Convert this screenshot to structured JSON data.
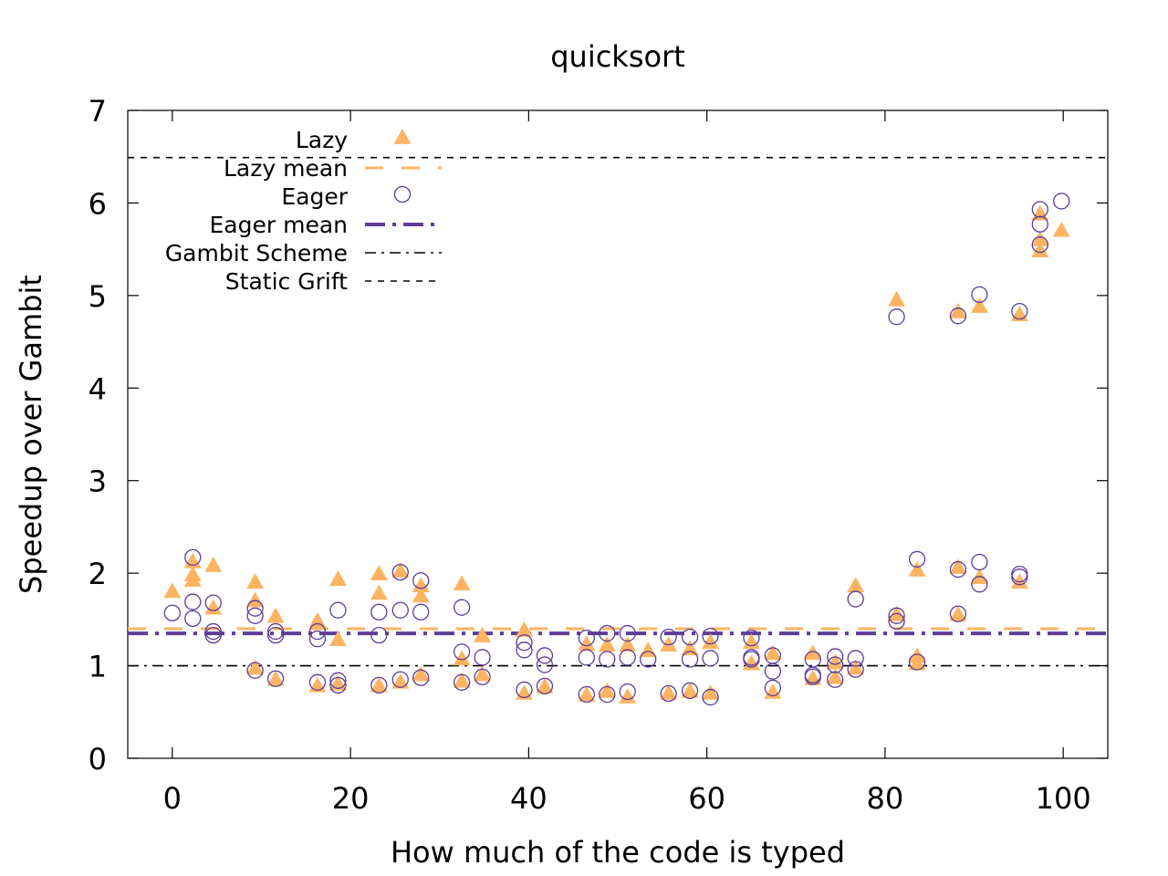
{
  "chart_data": {
    "type": "scatter",
    "title": "quicksort",
    "xlabel": "How much of the code is typed",
    "ylabel": "Speedup over Gambit",
    "xlim": [
      -5,
      105
    ],
    "ylim": [
      0,
      7
    ],
    "xticks": [
      0,
      20,
      40,
      60,
      80,
      100
    ],
    "yticks": [
      0,
      1,
      2,
      3,
      4,
      5,
      6,
      7
    ],
    "grid": false,
    "legend_position": "top-left",
    "series": [
      {
        "name": "Lazy",
        "kind": "points",
        "marker": "triangle",
        "color": "#fdb462",
        "points": [
          [
            0,
            1.8
          ],
          [
            2.3,
            2.12
          ],
          [
            2.3,
            1.98
          ],
          [
            2.3,
            1.92
          ],
          [
            4.6,
            2.08
          ],
          [
            4.6,
            1.62
          ],
          [
            9.3,
            1.9
          ],
          [
            9.3,
            1.7
          ],
          [
            9.3,
            0.97
          ],
          [
            11.6,
            1.53
          ],
          [
            11.6,
            0.85
          ],
          [
            16.3,
            1.48
          ],
          [
            16.3,
            0.78
          ],
          [
            18.6,
            1.93
          ],
          [
            18.6,
            1.28
          ],
          [
            18.6,
            0.8
          ],
          [
            23.2,
            1.99
          ],
          [
            23.2,
            1.78
          ],
          [
            23.2,
            0.78
          ],
          [
            25.6,
            2.02
          ],
          [
            25.6,
            0.82
          ],
          [
            27.9,
            1.86
          ],
          [
            27.9,
            1.75
          ],
          [
            27.9,
            0.9
          ],
          [
            32.5,
            1.88
          ],
          [
            32.5,
            1.07
          ],
          [
            32.5,
            0.83
          ],
          [
            34.8,
            1.32
          ],
          [
            34.8,
            0.9
          ],
          [
            39.5,
            1.38
          ],
          [
            39.5,
            0.7
          ],
          [
            41.8,
            0.77
          ],
          [
            46.5,
            1.23
          ],
          [
            46.5,
            0.68
          ],
          [
            48.8,
            1.22
          ],
          [
            48.8,
            0.72
          ],
          [
            51.1,
            1.22
          ],
          [
            51.1,
            0.66
          ],
          [
            53.4,
            1.16
          ],
          [
            55.7,
            1.22
          ],
          [
            55.7,
            0.7
          ],
          [
            58.1,
            1.18
          ],
          [
            58.1,
            0.72
          ],
          [
            60.4,
            1.25
          ],
          [
            60.4,
            0.7
          ],
          [
            65.0,
            1.25
          ],
          [
            65.0,
            1.02
          ],
          [
            67.4,
            1.13
          ],
          [
            67.4,
            0.71
          ],
          [
            71.9,
            1.13
          ],
          [
            71.9,
            0.86
          ],
          [
            74.4,
            1.03
          ],
          [
            74.4,
            0.87
          ],
          [
            76.7,
            1.86
          ],
          [
            76.7,
            0.97
          ],
          [
            81.3,
            4.95
          ],
          [
            81.3,
            1.55
          ],
          [
            83.6,
            2.03
          ],
          [
            83.6,
            1.1
          ],
          [
            83.6,
            1.02
          ],
          [
            88.2,
            4.82
          ],
          [
            88.2,
            2.06
          ],
          [
            88.2,
            1.55
          ],
          [
            90.6,
            4.88
          ],
          [
            90.6,
            1.95
          ],
          [
            95.1,
            4.79
          ],
          [
            95.1,
            1.9
          ],
          [
            97.4,
            5.88
          ],
          [
            97.4,
            5.6
          ],
          [
            97.4,
            5.48
          ],
          [
            99.8,
            5.7
          ]
        ]
      },
      {
        "name": "Lazy mean",
        "kind": "hline",
        "y": 1.4,
        "color": "#fdb462",
        "dash": "long-dash"
      },
      {
        "name": "Eager",
        "kind": "points",
        "marker": "circle",
        "color": "#5e3c99",
        "points": [
          [
            0,
            1.57
          ],
          [
            2.3,
            2.17
          ],
          [
            2.3,
            1.69
          ],
          [
            2.3,
            1.51
          ],
          [
            4.6,
            1.68
          ],
          [
            4.6,
            1.37
          ],
          [
            4.6,
            1.33
          ],
          [
            9.3,
            1.62
          ],
          [
            9.3,
            1.54
          ],
          [
            9.3,
            0.95
          ],
          [
            11.6,
            1.37
          ],
          [
            11.6,
            1.33
          ],
          [
            11.6,
            0.86
          ],
          [
            16.3,
            1.37
          ],
          [
            16.3,
            1.29
          ],
          [
            16.3,
            0.82
          ],
          [
            18.6,
            1.6
          ],
          [
            18.6,
            0.84
          ],
          [
            18.6,
            0.79
          ],
          [
            23.2,
            1.58
          ],
          [
            23.2,
            1.33
          ],
          [
            23.2,
            0.79
          ],
          [
            25.6,
            2.01
          ],
          [
            25.6,
            1.6
          ],
          [
            25.6,
            0.85
          ],
          [
            27.9,
            1.92
          ],
          [
            27.9,
            1.58
          ],
          [
            27.9,
            0.87
          ],
          [
            32.5,
            1.63
          ],
          [
            32.5,
            1.15
          ],
          [
            32.5,
            0.82
          ],
          [
            34.8,
            1.09
          ],
          [
            34.8,
            0.88
          ],
          [
            39.5,
            1.25
          ],
          [
            39.5,
            1.17
          ],
          [
            39.5,
            0.74
          ],
          [
            41.8,
            1.11
          ],
          [
            41.8,
            1.01
          ],
          [
            41.8,
            0.78
          ],
          [
            46.5,
            1.3
          ],
          [
            46.5,
            1.09
          ],
          [
            46.5,
            0.69
          ],
          [
            48.8,
            1.35
          ],
          [
            48.8,
            1.07
          ],
          [
            48.8,
            0.69
          ],
          [
            51.1,
            1.35
          ],
          [
            51.1,
            1.09
          ],
          [
            51.1,
            0.72
          ],
          [
            53.4,
            1.07
          ],
          [
            55.7,
            1.31
          ],
          [
            55.7,
            0.7
          ],
          [
            58.1,
            1.31
          ],
          [
            58.1,
            1.07
          ],
          [
            58.1,
            0.73
          ],
          [
            60.4,
            1.32
          ],
          [
            60.4,
            1.08
          ],
          [
            60.4,
            0.66
          ],
          [
            65.0,
            1.3
          ],
          [
            65.0,
            1.09
          ],
          [
            65.0,
            1.07
          ],
          [
            67.4,
            1.11
          ],
          [
            67.4,
            0.94
          ],
          [
            67.4,
            0.76
          ],
          [
            71.9,
            1.07
          ],
          [
            71.9,
            0.9
          ],
          [
            71.9,
            0.88
          ],
          [
            74.4,
            1.1
          ],
          [
            74.4,
            1.01
          ],
          [
            74.4,
            0.85
          ],
          [
            76.7,
            1.72
          ],
          [
            76.7,
            1.08
          ],
          [
            76.7,
            0.96
          ],
          [
            81.3,
            4.77
          ],
          [
            81.3,
            1.54
          ],
          [
            81.3,
            1.48
          ],
          [
            83.6,
            2.15
          ],
          [
            83.6,
            1.04
          ],
          [
            88.2,
            4.78
          ],
          [
            88.2,
            2.04
          ],
          [
            88.2,
            1.56
          ],
          [
            90.6,
            5.01
          ],
          [
            90.6,
            2.12
          ],
          [
            90.6,
            1.88
          ],
          [
            95.1,
            4.83
          ],
          [
            95.1,
            1.99
          ],
          [
            95.1,
            1.96
          ],
          [
            97.4,
            5.93
          ],
          [
            97.4,
            5.77
          ],
          [
            97.4,
            5.55
          ],
          [
            99.8,
            6.02
          ]
        ]
      },
      {
        "name": "Eager mean",
        "kind": "hline",
        "y": 1.35,
        "color": "#5e3c99",
        "dash": "dash-dot"
      },
      {
        "name": "Gambit Scheme",
        "kind": "hline",
        "y": 1.0,
        "color": "#000000",
        "dash": "dash-dot-thin"
      },
      {
        "name": "Static Grift",
        "kind": "hline",
        "y": 6.49,
        "color": "#000000",
        "dash": "short-dash"
      }
    ]
  }
}
